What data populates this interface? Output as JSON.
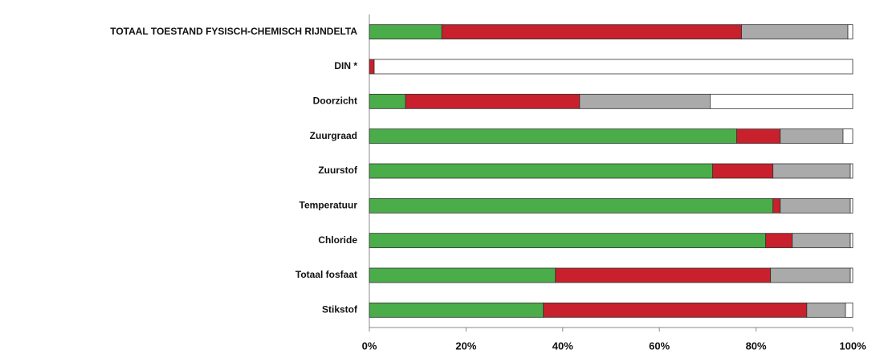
{
  "chart_data": {
    "type": "stacked_bar",
    "orientation": "horizontal",
    "categories": [
      "TOTAAL TOESTAND FYSISCH-CHEMISCH RIJNDELTA",
      "DIN *",
      "Doorzicht",
      "Zuurgraad",
      "Zuurstof",
      "Temperatuur",
      "Chloride",
      "Totaal fosfaat",
      "Stikstof"
    ],
    "series": [
      {
        "color": "#4aad4a",
        "values": [
          15,
          0,
          7.5,
          76,
          71,
          83.5,
          82,
          38.5,
          36
        ]
      },
      {
        "color": "#c8202c",
        "values": [
          62,
          1,
          36,
          9,
          12.5,
          1.5,
          5.5,
          44.5,
          54.5
        ]
      },
      {
        "color": "#aaaaaa",
        "values": [
          22,
          0,
          27,
          13,
          16,
          14.5,
          12,
          16.5,
          8
        ]
      },
      {
        "color": "#ffffff",
        "values": [
          1,
          99,
          29.5,
          2,
          0.5,
          0.5,
          0.5,
          0.5,
          1.5
        ]
      }
    ],
    "xlim": [
      0,
      100
    ],
    "xticks": [
      {
        "value": 0,
        "label": "0%"
      },
      {
        "value": 20,
        "label": "20%"
      },
      {
        "value": 40,
        "label": "40%"
      },
      {
        "value": 60,
        "label": "60%"
      },
      {
        "value": 80,
        "label": "80%"
      },
      {
        "value": 100,
        "label": "100%"
      }
    ]
  }
}
